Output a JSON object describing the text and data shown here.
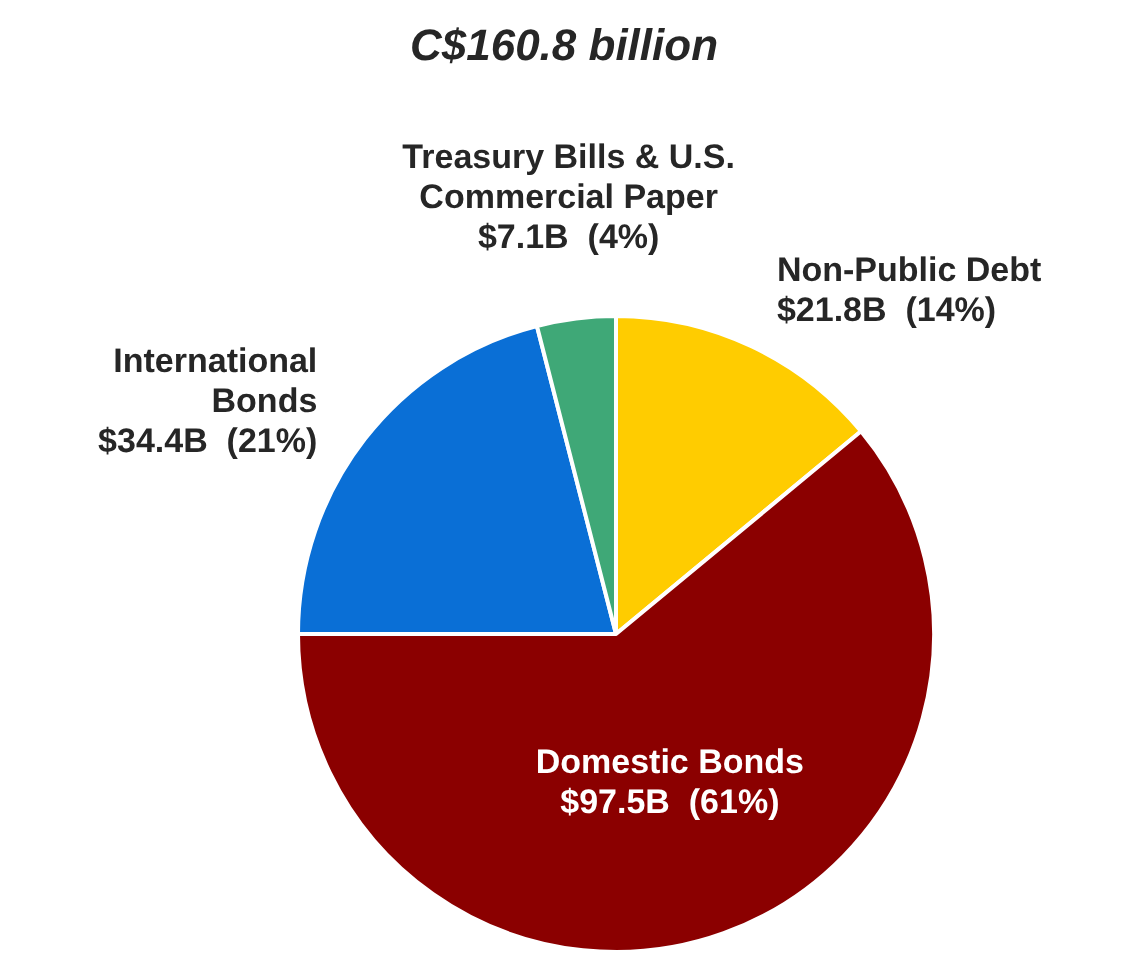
{
  "chart_data": {
    "type": "pie",
    "title": "C$160.8 billion",
    "categories": [
      "Non-Public Debt",
      "Domestic Bonds",
      "International Bonds",
      "Treasury Bills & U.S. Commercial Paper"
    ],
    "values": [
      14,
      61,
      21,
      4
    ],
    "colors": [
      "#ffcc00",
      "#8b0000",
      "#0a6fd6",
      "#3fa877"
    ],
    "value_labels": [
      "$21.8B  (14%)",
      "$97.5B  (61%)",
      "$34.4B  (21%)",
      "$7.1B  (4%)"
    ],
    "legend": false
  }
}
